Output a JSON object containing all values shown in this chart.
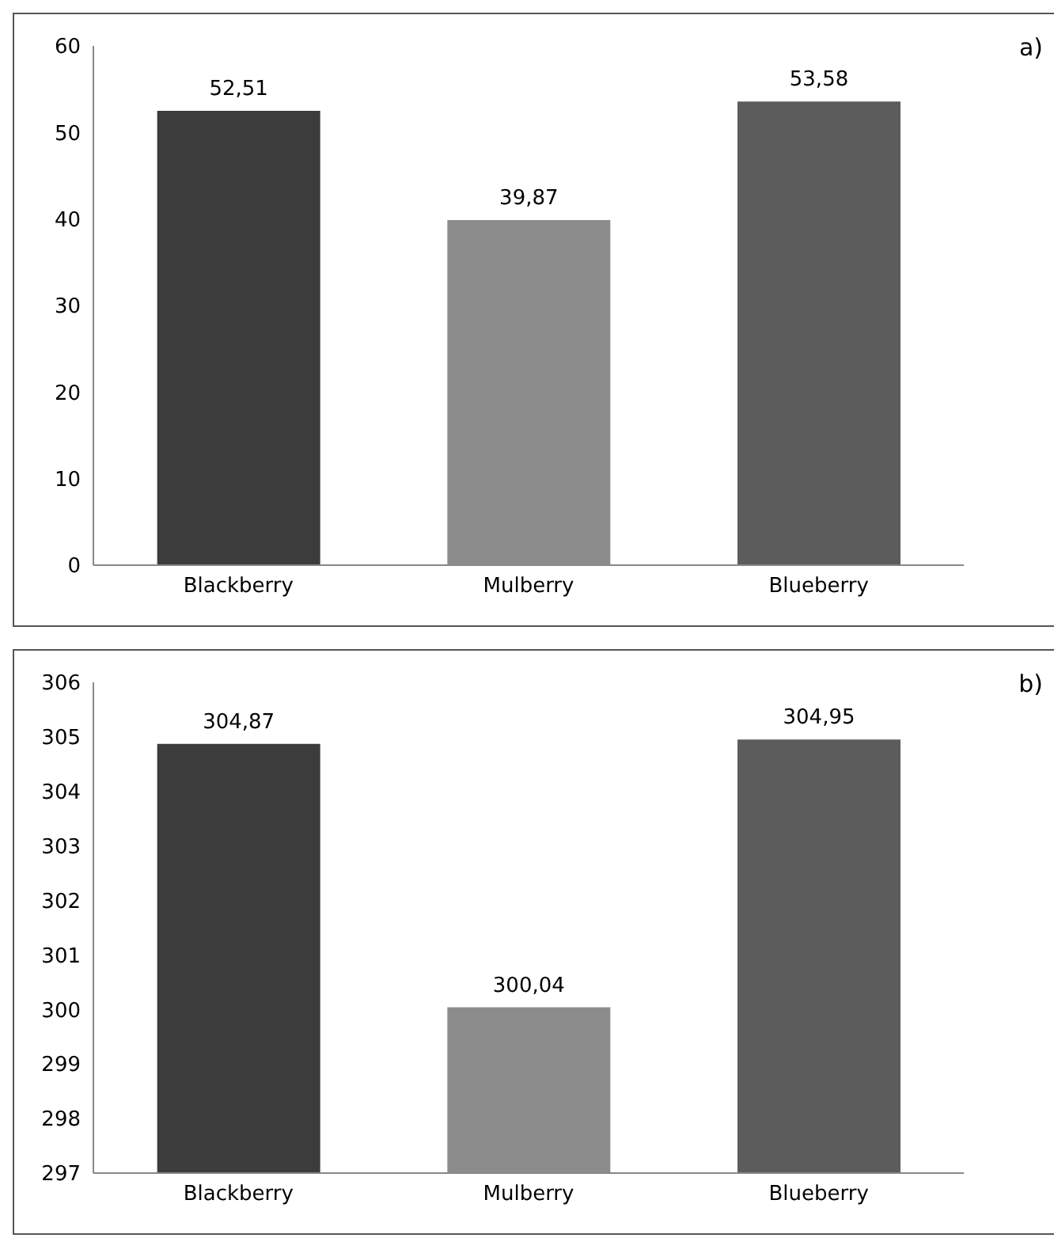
{
  "chart_data": [
    {
      "type": "bar",
      "categories": [
        "Blackberry",
        "Mulberry",
        "Blueberry"
      ],
      "values": [
        52.51,
        39.87,
        53.58
      ],
      "colors": [
        "#3c3c3c",
        "#8c8c8c",
        "#5c5c5c"
      ],
      "value_labels": [
        "52,51",
        "39,87",
        "53,58"
      ],
      "ylim": [
        0,
        60
      ],
      "yticks": [
        0,
        10,
        20,
        30,
        40,
        50,
        60
      ],
      "annotations": [
        "a)"
      ]
    },
    {
      "type": "bar",
      "categories": [
        "Blackberry",
        "Mulberry",
        "Blueberry"
      ],
      "values": [
        304.87,
        300.04,
        304.95
      ],
      "colors": [
        "#3c3c3c",
        "#8c8c8c",
        "#5c5c5c"
      ],
      "value_labels": [
        "304,87",
        "300,04",
        "304,95"
      ],
      "ylim": [
        297,
        306
      ],
      "yticks": [
        297,
        298,
        299,
        300,
        301,
        302,
        303,
        304,
        305,
        306
      ],
      "annotations": [
        "b)"
      ]
    }
  ]
}
